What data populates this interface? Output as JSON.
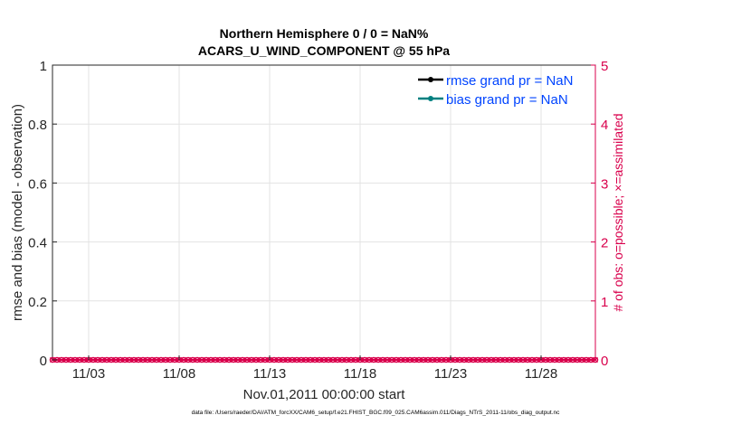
{
  "chart_data": {
    "type": "line",
    "title": [
      "Northern Hemisphere 0 / 0 = NaN%",
      "ACARS_U_WIND_COMPONENT @ 55 hPa"
    ],
    "xlabel": "Nov.01,2011 00:00:00 start",
    "ylabel": "rmse and bias (model - observation)",
    "y2label": "# of obs: o=possible; ×=assimilated",
    "xlim": [
      "11/01 00:00",
      "12/01 00:00"
    ],
    "ylim": [
      0,
      1
    ],
    "y2lim": [
      0,
      5
    ],
    "xticks": [
      "11/03",
      "11/08",
      "11/13",
      "11/18",
      "11/23",
      "11/28"
    ],
    "xtick_days": [
      3,
      8,
      13,
      18,
      23,
      28
    ],
    "yticks": [
      "0",
      "0.2",
      "0.4",
      "0.6",
      "0.8",
      "1"
    ],
    "y2ticks": [
      "0",
      "1",
      "2",
      "3",
      "4",
      "5"
    ],
    "grid": true,
    "legend_position": "top-right",
    "series": [
      {
        "name": "rmse grand pr = NaN",
        "color": "#000000",
        "values": "NaN"
      },
      {
        "name": "bias grand pr = NaN",
        "color": "#008080",
        "values": "NaN"
      },
      {
        "marker": "o",
        "axis": "right",
        "color": "#d9004c",
        "interval_hours": 6,
        "value": 0
      },
      {
        "marker": "x",
        "axis": "right",
        "color": "#d9004c",
        "interval_hours": 6,
        "value": 0
      }
    ],
    "obs_color": "#d9004c",
    "legend_text_color": "#0044ff"
  },
  "footer": "data file: /Users/raeder/DAI/ATM_forcXX/CAM6_setup/f.e21.FHIST_BGC.f09_025.CAM6assim.011/Diags_NTrS_2011-11/obs_diag_output.nc"
}
